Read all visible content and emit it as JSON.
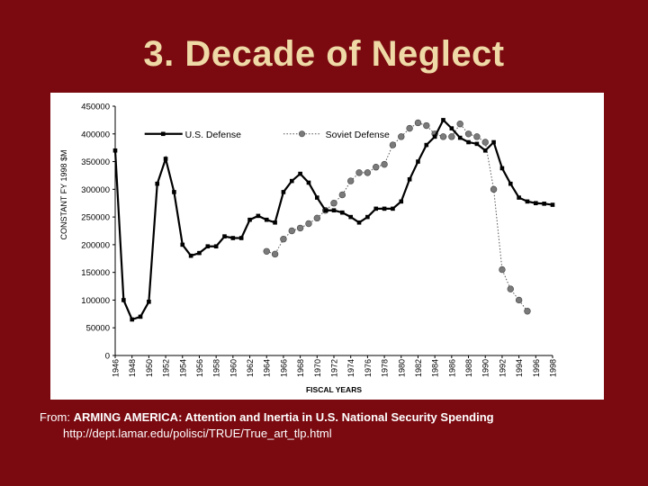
{
  "slide": {
    "title": "3. Decade of Neglect"
  },
  "caption": {
    "prefix": "From: ",
    "source_title": "ARMING AMERICA: Attention and Inertia in U.S. National Security Spending",
    "url": "http://dept.lamar.edu/polisci/TRUE/True_art_tlp.html"
  },
  "chart_data": {
    "type": "line",
    "title": "",
    "xlabel": "FISCAL YEARS",
    "ylabel": "CONSTANT FY 1998 $M",
    "xlim": [
      1946,
      1998
    ],
    "ylim": [
      0,
      450000
    ],
    "yticks": [
      0,
      50000,
      100000,
      150000,
      200000,
      250000,
      300000,
      350000,
      400000,
      450000
    ],
    "xticks": [
      1946,
      1948,
      1950,
      1952,
      1954,
      1956,
      1958,
      1960,
      1962,
      1964,
      1966,
      1968,
      1970,
      1972,
      1974,
      1976,
      1978,
      1980,
      1982,
      1984,
      1986,
      1988,
      1990,
      1992,
      1994,
      1996,
      1998
    ],
    "grid": false,
    "legend": "top",
    "series": [
      {
        "name": "U.S. Defense",
        "style": "line-square",
        "color": "#000000",
        "x": [
          1946,
          1947,
          1948,
          1949,
          1950,
          1951,
          1952,
          1953,
          1954,
          1955,
          1956,
          1957,
          1958,
          1959,
          1960,
          1961,
          1962,
          1963,
          1964,
          1965,
          1966,
          1967,
          1968,
          1969,
          1970,
          1971,
          1972,
          1973,
          1974,
          1975,
          1976,
          1977,
          1978,
          1979,
          1980,
          1981,
          1982,
          1983,
          1984,
          1985,
          1986,
          1987,
          1988,
          1989,
          1990,
          1991,
          1992,
          1993,
          1994,
          1995,
          1996,
          1997,
          1998
        ],
        "values": [
          370000,
          100000,
          65000,
          70000,
          97000,
          310000,
          355000,
          295000,
          200000,
          180000,
          185000,
          197000,
          197000,
          215000,
          212000,
          212000,
          245000,
          252000,
          245000,
          240000,
          295000,
          315000,
          328000,
          312000,
          285000,
          262000,
          262000,
          258000,
          250000,
          240000,
          250000,
          265000,
          265000,
          265000,
          278000,
          318000,
          350000,
          380000,
          395000,
          425000,
          410000,
          393000,
          385000,
          382000,
          370000,
          385000,
          338000,
          310000,
          285000,
          278000,
          275000,
          274000,
          272000
        ]
      },
      {
        "name": "Soviet Defense",
        "style": "dotted-circle",
        "color": "#7a7a7a",
        "x": [
          1964,
          1965,
          1966,
          1967,
          1968,
          1969,
          1970,
          1971,
          1972,
          1973,
          1974,
          1975,
          1976,
          1977,
          1978,
          1979,
          1980,
          1981,
          1982,
          1983,
          1984,
          1985,
          1986,
          1987,
          1988,
          1989,
          1990,
          1991,
          1992,
          1993,
          1994,
          1995
        ],
        "values": [
          188000,
          183000,
          210000,
          225000,
          230000,
          238000,
          248000,
          262000,
          275000,
          290000,
          315000,
          330000,
          330000,
          340000,
          345000,
          380000,
          395000,
          410000,
          420000,
          415000,
          400000,
          395000,
          395000,
          418000,
          400000,
          395000,
          385000,
          300000,
          155000,
          120000,
          100000,
          80000
        ]
      }
    ]
  },
  "colors": {
    "slide_background": "#7a0a10",
    "title_text": "#efd9a6",
    "caption_text": "#ffffff",
    "us_series": "#000000",
    "soviet_series": "#7a7a7a"
  }
}
